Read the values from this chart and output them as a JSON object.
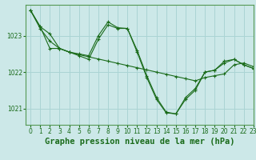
{
  "background_color": "#cce8e8",
  "grid_color": "#aad4d4",
  "line_color": "#1a6b1a",
  "title": "Graphe pression niveau de la mer (hPa)",
  "xlim": [
    -0.5,
    23
  ],
  "ylim": [
    1020.55,
    1023.85
  ],
  "yticks": [
    1021,
    1022,
    1023
  ],
  "xticks": [
    0,
    1,
    2,
    3,
    4,
    5,
    6,
    7,
    8,
    9,
    10,
    11,
    12,
    13,
    14,
    15,
    16,
    17,
    18,
    19,
    20,
    21,
    22,
    23
  ],
  "series1_x": [
    0,
    1,
    2,
    3,
    4,
    5,
    6,
    7,
    8,
    9,
    10,
    11,
    12,
    13,
    14,
    15,
    16,
    17,
    18,
    19,
    20,
    21,
    22,
    23
  ],
  "series1_y": [
    1023.7,
    1023.2,
    1022.85,
    1022.65,
    1022.55,
    1022.48,
    1022.42,
    1022.36,
    1022.3,
    1022.24,
    1022.18,
    1022.12,
    1022.06,
    1022.0,
    1021.94,
    1021.88,
    1021.82,
    1021.76,
    1021.85,
    1021.9,
    1021.95,
    1022.2,
    1022.25,
    1022.15
  ],
  "series2_x": [
    0,
    1,
    2,
    3,
    4,
    5,
    6,
    7,
    8,
    9,
    10,
    11,
    12,
    13,
    14,
    15,
    16,
    17,
    18,
    19,
    20,
    21,
    22,
    23
  ],
  "series2_y": [
    1023.7,
    1023.25,
    1023.05,
    1022.65,
    1022.55,
    1022.5,
    1022.45,
    1023.0,
    1023.38,
    1023.22,
    1023.2,
    1022.6,
    1021.9,
    1021.3,
    1020.9,
    1020.85,
    1021.3,
    1021.55,
    1022.0,
    1022.05,
    1022.3,
    1022.35,
    1022.2,
    1022.1
  ],
  "series3_x": [
    0,
    1,
    2,
    3,
    4,
    5,
    6,
    7,
    8,
    9,
    10,
    11,
    12,
    13,
    14,
    15,
    16,
    17,
    18,
    19,
    20,
    21,
    22,
    23
  ],
  "series3_y": [
    1023.7,
    1023.25,
    1022.65,
    1022.65,
    1022.55,
    1022.45,
    1022.35,
    1022.9,
    1023.3,
    1023.2,
    1023.2,
    1022.55,
    1021.85,
    1021.25,
    1020.88,
    1020.85,
    1021.25,
    1021.5,
    1022.0,
    1022.05,
    1022.25,
    1022.35,
    1022.2,
    1022.1
  ],
  "title_fontsize": 7.5,
  "tick_fontsize": 5.5,
  "title_color": "#1a6b1a",
  "tick_color": "#1a6b1a",
  "spine_color": "#559955"
}
